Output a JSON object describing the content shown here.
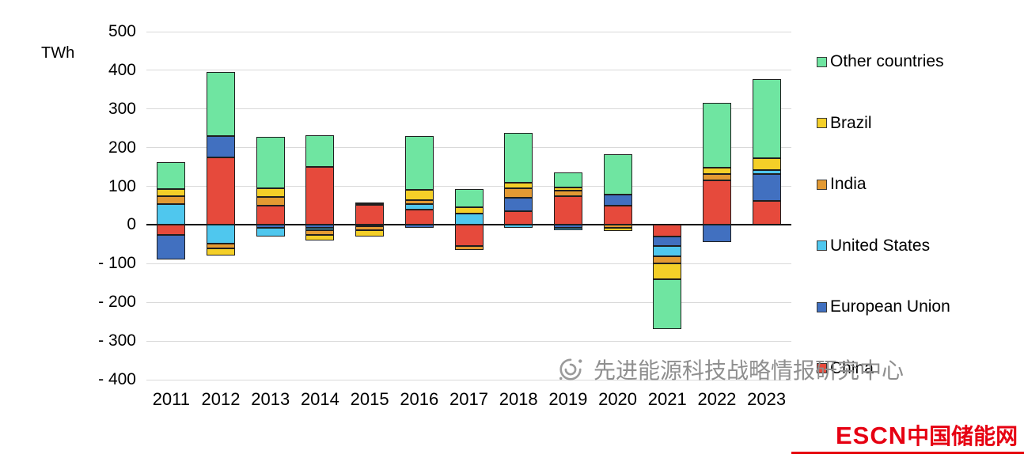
{
  "page": {
    "background": "#ffffff"
  },
  "chart_data": {
    "type": "bar",
    "stacked": true,
    "title": "",
    "ylabel": "TWh",
    "xlabel": "",
    "ylim": [
      -400,
      500
    ],
    "grid": true,
    "legend_position": "right",
    "ytick_values": [
      500,
      400,
      300,
      200,
      100,
      0,
      -100,
      -200,
      -300,
      -400
    ],
    "ytick_labels": [
      "500",
      "400",
      "300",
      "200",
      "100",
      "0",
      "- 100",
      "- 200",
      "- 300",
      "- 400"
    ],
    "categories": [
      "2011",
      "2012",
      "2013",
      "2014",
      "2015",
      "2016",
      "2017",
      "2018",
      "2019",
      "2020",
      "2021",
      "2022",
      "2023"
    ],
    "series": [
      {
        "name": "China",
        "color": "#e64a3c",
        "values": [
          -25,
          175,
          50,
          150,
          52,
          40,
          -55,
          35,
          75,
          50,
          -30,
          115,
          62
        ]
      },
      {
        "name": "European Union",
        "color": "#4170c0",
        "values": [
          -65,
          55,
          -8,
          -8,
          4,
          -8,
          0,
          35,
          -8,
          28,
          -25,
          -45,
          70
        ]
      },
      {
        "name": "United States",
        "color": "#4fc7ee",
        "values": [
          55,
          -48,
          -22,
          -5,
          -4,
          15,
          30,
          -8,
          -5,
          0,
          -25,
          0,
          10
        ]
      },
      {
        "name": "India",
        "color": "#e39a33",
        "values": [
          20,
          -12,
          22,
          -12,
          -10,
          10,
          -10,
          25,
          13,
          -7,
          -20,
          17,
          0
        ]
      },
      {
        "name": "Brazil",
        "color": "#f4cf28",
        "values": [
          18,
          -18,
          23,
          -15,
          -16,
          25,
          15,
          15,
          10,
          -8,
          -40,
          16,
          30
        ]
      },
      {
        "name": "Other countries",
        "color": "#6fe5a1",
        "values": [
          70,
          165,
          133,
          82,
          2,
          140,
          47,
          128,
          37,
          104,
          -130,
          167,
          206
        ]
      }
    ],
    "legend_order": [
      "Other countries",
      "Brazil",
      "India",
      "United States",
      "European Union",
      "China"
    ]
  },
  "watermark": {
    "text": "先进能源科技战略情报研究中心"
  },
  "brand": {
    "escn": "ESCN",
    "site": "中国储能网",
    "color": "#e60012"
  }
}
